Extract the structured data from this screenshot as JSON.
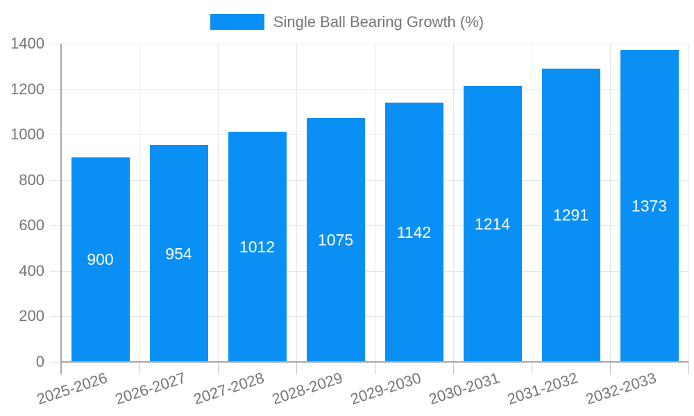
{
  "chart": {
    "colors": {
      "bar": "#0a90f5",
      "grid": "#e6e6e6",
      "axis_line": "#a8a8a8",
      "tick_mark": "#c6c6c6",
      "axis_text": "#757575",
      "value_text": "#ffffff",
      "background": "#ffffff"
    }
  },
  "chart_data": {
    "type": "bar",
    "title": "",
    "categories": [
      "2025-2026",
      "2026-2027",
      "2027-2028",
      "2028-2029",
      "2029-2030",
      "2030-2031",
      "2031-2032",
      "2032-2033"
    ],
    "series": [
      {
        "name": "Single Ball Bearing Growth (%)",
        "values": [
          900,
          954,
          1012,
          1075,
          1142,
          1214,
          1291,
          1373
        ]
      }
    ],
    "xlabel": "",
    "ylabel": "",
    "ylim": [
      0,
      1400
    ],
    "ytick_step": 200,
    "ytick_labels": [
      "0",
      "200",
      "400",
      "600",
      "800",
      "1000",
      "1200",
      "1400"
    ],
    "grid": true,
    "legend_position": "top-center",
    "bar_value_labels": "inside-center",
    "x_tick_rotation_deg": -18
  }
}
